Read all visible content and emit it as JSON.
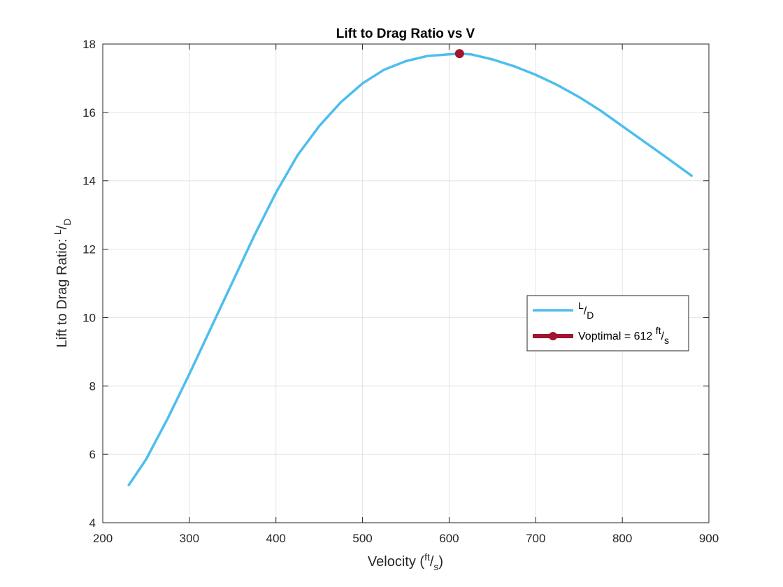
{
  "chart_data": {
    "type": "line",
    "title": "Lift to Drag Ratio vs V",
    "xlabel": {
      "text": "Velocity (",
      "num": "ft",
      "slash": "/",
      "den": "s",
      "close": ")"
    },
    "ylabel": {
      "text": "Lift to Drag Ratio: ",
      "num": "L",
      "slash": "/",
      "den": "D"
    },
    "xlim": [
      200,
      900
    ],
    "ylim": [
      4,
      18
    ],
    "xticks": [
      200,
      300,
      400,
      500,
      600,
      700,
      800,
      900
    ],
    "yticks": [
      4,
      6,
      8,
      10,
      12,
      14,
      16,
      18
    ],
    "grid": true,
    "legend_position": "east",
    "series": [
      {
        "name": {
          "num": "L",
          "slash": "/",
          "den": "D"
        },
        "color": "#4DBEEE",
        "x": [
          230,
          250,
          275,
          300,
          325,
          350,
          375,
          400,
          425,
          450,
          475,
          500,
          525,
          550,
          575,
          600,
          612,
          625,
          650,
          675,
          700,
          725,
          750,
          775,
          800,
          825,
          850,
          880
        ],
        "y": [
          5.1,
          5.85,
          7.05,
          8.35,
          9.7,
          11.05,
          12.4,
          13.65,
          14.75,
          15.6,
          16.3,
          16.85,
          17.25,
          17.5,
          17.65,
          17.7,
          17.72,
          17.7,
          17.55,
          17.35,
          17.1,
          16.8,
          16.45,
          16.05,
          15.6,
          15.15,
          14.7,
          14.15
        ]
      },
      {
        "name": {
          "text": "Voptimal = 612 ",
          "num": "ft",
          "slash": "/",
          "den": "s"
        },
        "color": "#A2142F",
        "marker": "circle",
        "x": [
          612
        ],
        "y": [
          17.72
        ]
      }
    ]
  }
}
